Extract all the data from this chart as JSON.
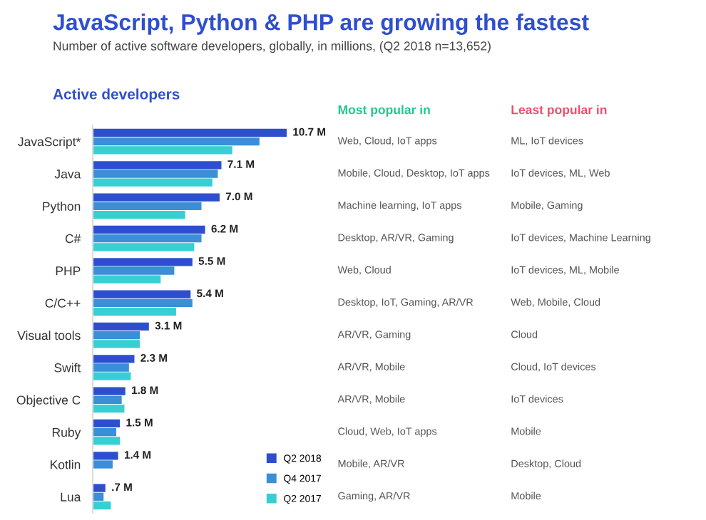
{
  "chart_data": [
    {
      "type": "bar",
      "orientation": "horizontal",
      "title": "JavaScript, Python & PHP are growing the fastest",
      "subtitle": "Number of active software developers, globally, in millions, (Q2 2018 n=13,652)",
      "annotations": [
        "Active developers"
      ],
      "categories": [
        "JavaScript*",
        "Java",
        "Python",
        "C#",
        "PHP",
        "C/C++",
        "Visual tools",
        "Swift",
        "Objective C",
        "Ruby",
        "Kotlin",
        "Lua"
      ],
      "series": [
        {
          "name": "Q2 2018",
          "color": "#2d4fcf",
          "values": [
            10.7,
            7.1,
            7.0,
            6.2,
            5.5,
            5.4,
            3.1,
            2.3,
            1.8,
            1.5,
            1.4,
            0.7
          ],
          "value_labels": [
            "10.7 M",
            "7.1 M",
            "7.0 M",
            "6.2 M",
            "5.5 M",
            "5.4 M",
            "3.1 M",
            "2.3 M",
            "1.8 M",
            "1.5 M",
            "1.4 M",
            ".7 M"
          ]
        },
        {
          "name": "Q4 2017",
          "color": "#3a8fd6",
          "values": [
            9.2,
            6.9,
            6.0,
            6.0,
            4.5,
            5.5,
            2.6,
            2.0,
            1.6,
            1.3,
            1.1,
            0.6
          ]
        },
        {
          "name": "Q2 2017",
          "color": "#36cfd3",
          "values": [
            7.7,
            6.6,
            5.1,
            5.6,
            3.75,
            4.6,
            2.6,
            2.1,
            1.75,
            1.5,
            null,
            1.0
          ]
        }
      ],
      "legend": "bottom right",
      "grid": false
    },
    {
      "type": "other",
      "annotations": [
        "Most popular in",
        "Least popular in",
        "Web, Cloud, IoT apps",
        "ML, IoT devices",
        "Mobile, Cloud, Desktop, IoT apps",
        "IoT devices, ML, Web",
        "Machine learning, IoT apps",
        "Mobile, Gaming",
        "Desktop, AR/VR, Gaming",
        "IoT devices, Machine Learning",
        "Web, Cloud",
        "IoT devices, ML, Mobile",
        "Desktop, IoT, Gaming, AR/VR",
        "Web, Mobile, Cloud",
        "AR/VR, Gaming",
        "Cloud",
        "AR/VR, Mobile",
        "Cloud, IoT devices",
        "AR/VR, Mobile",
        "IoT devices",
        "Cloud, Web, IoT apps",
        "Mobile",
        "Mobile, AR/VR",
        "Desktop, Cloud",
        "Gaming, AR/VR",
        "Mobile"
      ]
    }
  ]
}
